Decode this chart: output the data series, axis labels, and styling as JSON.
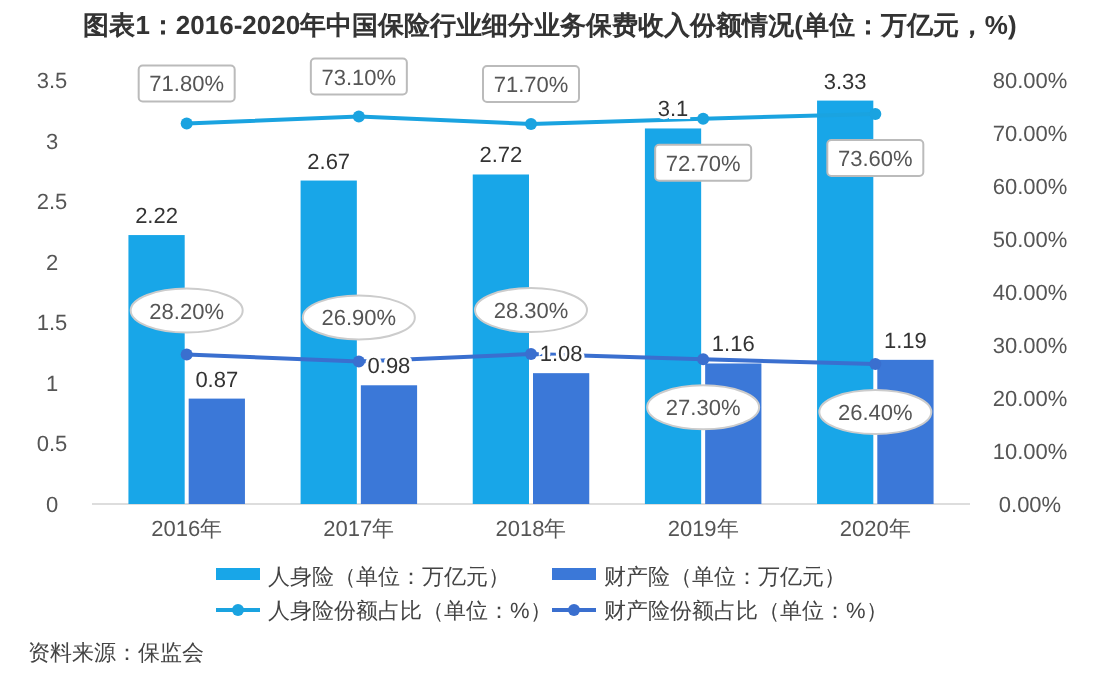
{
  "chart_data": {
    "type": "bar",
    "title": "图表1：2016-2020年中国保险行业细分业务保费收入份额情况(单位：万亿元，%)",
    "categories": [
      "2016年",
      "2017年",
      "2018年",
      "2019年",
      "2020年"
    ],
    "series": [
      {
        "name": "人身险（单位：万亿元）",
        "color": "#18a6e8",
        "values": [
          2.22,
          2.67,
          2.72,
          3.1,
          3.33
        ],
        "value_labels": [
          "2.22",
          "2.67",
          "2.72",
          "3.1",
          "3.33"
        ]
      },
      {
        "name": "财产险（单位：万亿元）",
        "color": "#3b78d8",
        "values": [
          0.87,
          0.98,
          1.08,
          1.16,
          1.19
        ],
        "value_labels": [
          "0.87",
          "0.98",
          "1.08",
          "1.16",
          "1.19"
        ]
      },
      {
        "name": "人身险份额占比（单位：%）",
        "type": "line",
        "axis": "y2",
        "color": "#1aa3e0",
        "values": [
          71.8,
          73.1,
          71.7,
          72.7,
          73.6
        ],
        "value_labels": [
          "71.80%",
          "73.10%",
          "71.70%",
          "72.70%",
          "73.60%"
        ]
      },
      {
        "name": "财产险份额占比（单位：%）",
        "type": "line",
        "axis": "y2",
        "color": "#3a6fcf",
        "values": [
          28.2,
          26.9,
          28.3,
          27.3,
          26.4
        ],
        "value_labels": [
          "28.20%",
          "26.90%",
          "28.30%",
          "27.30%",
          "26.40%"
        ]
      }
    ],
    "ylim": [
      0,
      3.5
    ],
    "yticks": [
      0,
      0.5,
      1,
      1.5,
      2,
      2.5,
      3,
      3.5
    ],
    "y2lim": [
      0,
      80
    ],
    "y2ticks": [
      {
        "value": 0,
        "label": "0.00%"
      },
      {
        "value": 10,
        "label": "10.00%"
      },
      {
        "value": 20,
        "label": "20.00%"
      },
      {
        "value": 30,
        "label": "30.00%"
      },
      {
        "value": 40,
        "label": "40.00%"
      },
      {
        "value": 50,
        "label": "50.00%"
      },
      {
        "value": 60,
        "label": "60.00%"
      },
      {
        "value": 70,
        "label": "70.00%"
      },
      {
        "value": 80,
        "label": "80.00%"
      }
    ],
    "marker": "circle",
    "legend": "bottom",
    "grid": false,
    "annotations": [
      "资料来源：保监会"
    ]
  }
}
